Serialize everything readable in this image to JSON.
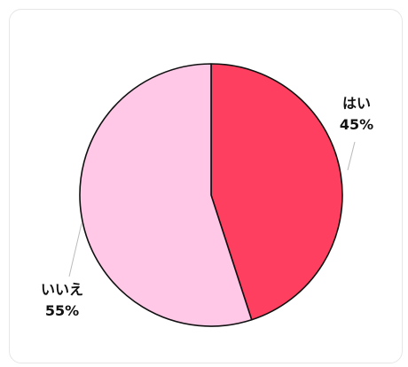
{
  "chart_data": {
    "type": "pie",
    "title": "",
    "start_angle_deg": 0,
    "direction": "clockwise",
    "slices": [
      {
        "label": "はい",
        "value": 45,
        "value_label": "45%",
        "color": "#ff3f5f"
      },
      {
        "label": "いいえ",
        "value": 55,
        "value_label": "55%",
        "color": "#ffc8e6"
      }
    ],
    "stroke_color": "#111111",
    "leader_color": "#bbbbbb",
    "legend": "none"
  }
}
